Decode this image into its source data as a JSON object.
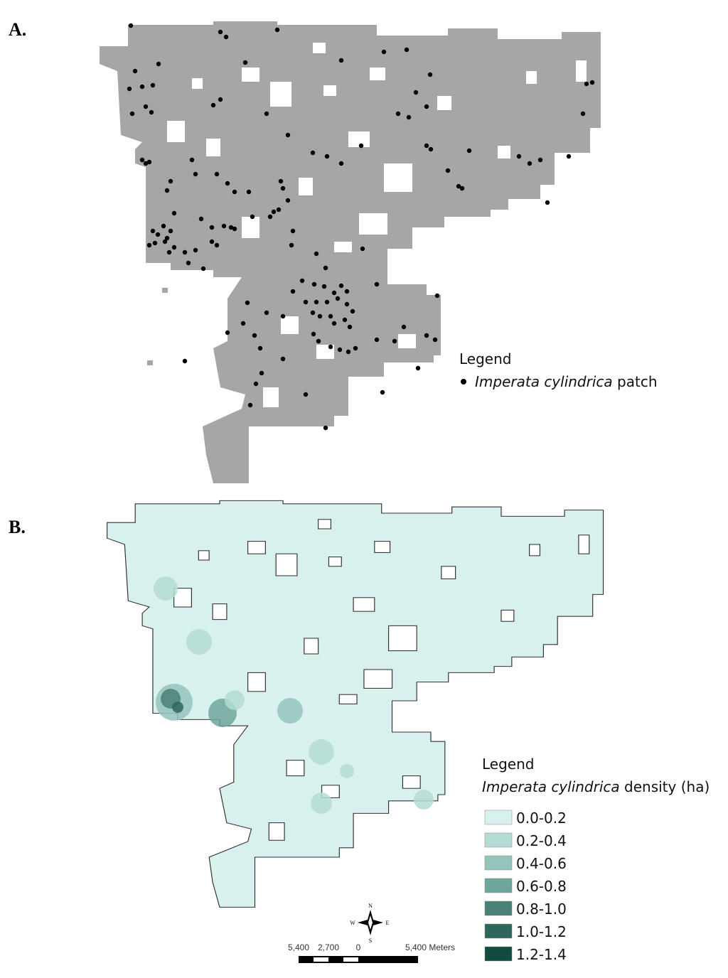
{
  "panels": [
    {
      "label": "A.",
      "legend": {
        "title": "Legend",
        "species": "Imperata cylindrica",
        "text": "patch",
        "color": "#000000"
      },
      "map_color": "#a6a6a6"
    },
    {
      "label": "B.",
      "legend": {
        "title": "Legend",
        "species": "Imperata cylindrica",
        "text": "density (ha)",
        "classes": [
          {
            "label": "0.0-0.2",
            "color": "#d9f1ee"
          },
          {
            "label": "0.2-0.4",
            "color": "#b4dcd5"
          },
          {
            "label": "0.4-0.6",
            "color": "#95c4bc"
          },
          {
            "label": "0.6-0.8",
            "color": "#6fa69c"
          },
          {
            "label": "0.8-1.0",
            "color": "#4b8178"
          },
          {
            "label": "1.0-1.2",
            "color": "#2f665c"
          },
          {
            "label": "1.2-1.4",
            "color": "#134b42"
          }
        ]
      },
      "scale_bar": {
        "labels": [
          "5,400",
          "2,700",
          "0",
          "5,400 Meters"
        ]
      },
      "compass": {
        "n": "N",
        "s": "S",
        "e": "E",
        "w": "W"
      }
    }
  ]
}
